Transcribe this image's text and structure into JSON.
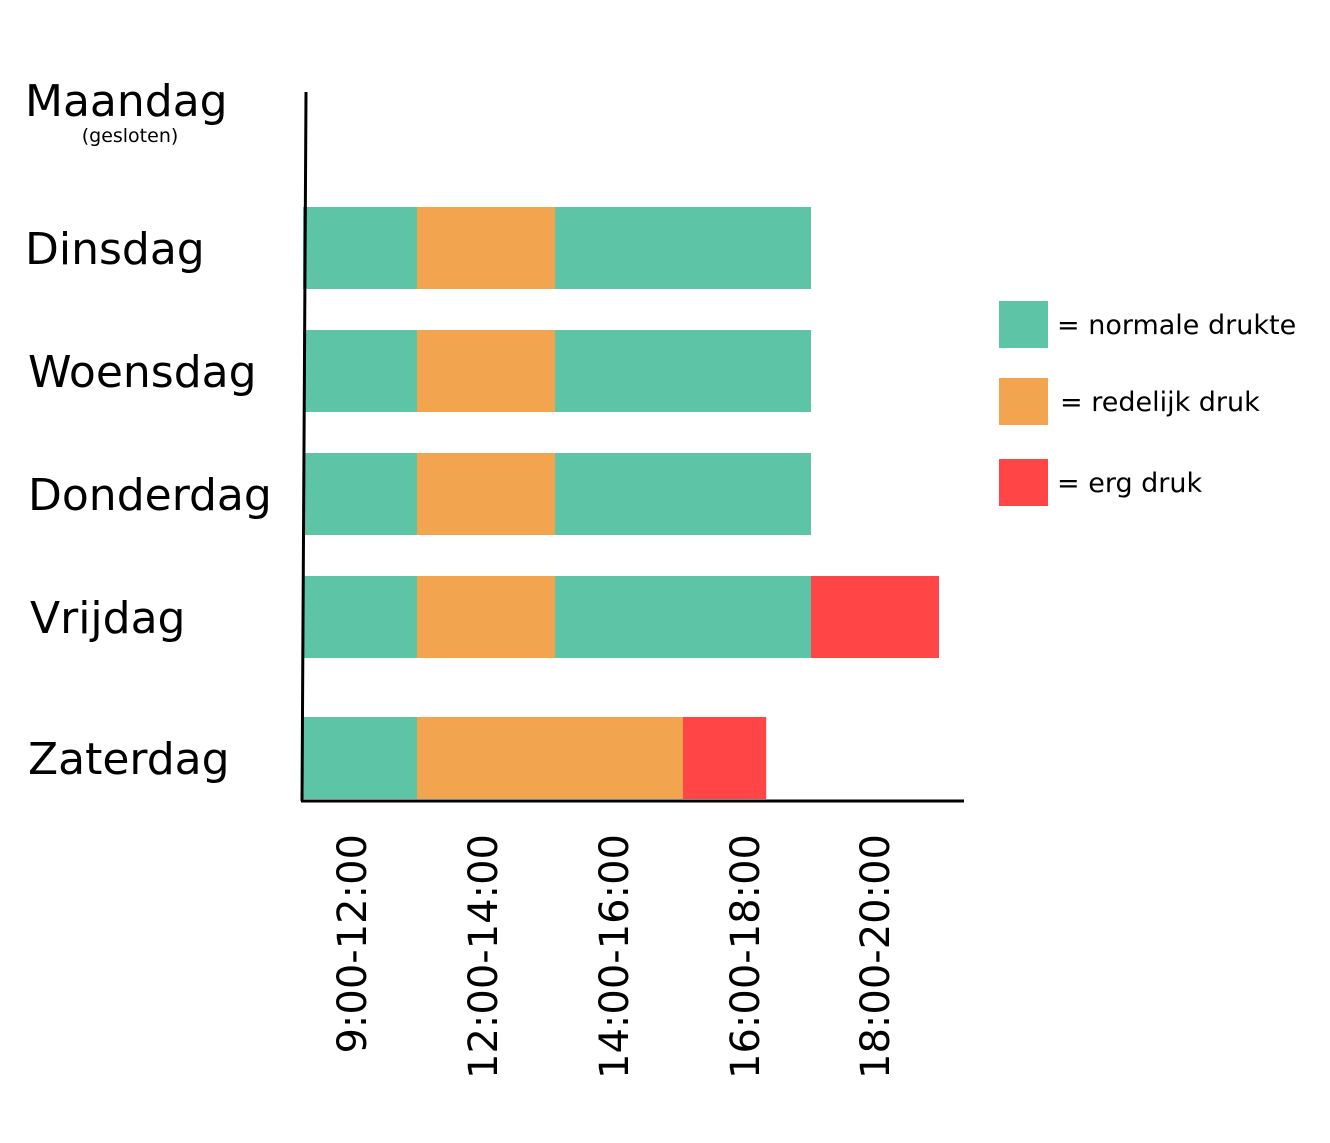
{
  "chart_data": {
    "type": "bar",
    "orientation": "horizontal-stacked",
    "categories": [
      "Maandag",
      "Dinsdag",
      "Woensdag",
      "Donderdag",
      "Vrijdag",
      "Zaterdag"
    ],
    "category_notes": {
      "Maandag": "(gesloten)"
    },
    "time_slots": [
      "9:00-12:00",
      "12:00-14:00",
      "14:00-16:00",
      "16:00-18:00",
      "18:00-20:00"
    ],
    "levels": {
      "normaal": {
        "label": "= normale drukte",
        "color": "#5EC4A6"
      },
      "redelijk": {
        "label": "= redelijk druk",
        "color": "#F3A44E"
      },
      "erg": {
        "label": "= erg druk",
        "color": "#FF4545"
      }
    },
    "legend_order": [
      "normaal",
      "redelijk",
      "erg"
    ],
    "legend_position": "right",
    "bars": [
      {
        "day": "Maandag",
        "segments": []
      },
      {
        "day": "Dinsdag",
        "segments": [
          {
            "from": 0,
            "to": 1,
            "level": "normaal"
          },
          {
            "from": 1,
            "to": 2,
            "level": "redelijk"
          },
          {
            "from": 2,
            "to": 4,
            "level": "normaal"
          }
        ]
      },
      {
        "day": "Woensdag",
        "segments": [
          {
            "from": 0,
            "to": 1,
            "level": "normaal"
          },
          {
            "from": 1,
            "to": 2,
            "level": "redelijk"
          },
          {
            "from": 2,
            "to": 4,
            "level": "normaal"
          }
        ]
      },
      {
        "day": "Donderdag",
        "segments": [
          {
            "from": 0,
            "to": 1,
            "level": "normaal"
          },
          {
            "from": 1,
            "to": 2,
            "level": "redelijk"
          },
          {
            "from": 2,
            "to": 4,
            "level": "normaal"
          }
        ]
      },
      {
        "day": "Vrijdag",
        "segments": [
          {
            "from": 0,
            "to": 1,
            "level": "normaal"
          },
          {
            "from": 1,
            "to": 2,
            "level": "redelijk"
          },
          {
            "from": 2,
            "to": 4,
            "level": "normaal"
          },
          {
            "from": 4,
            "to": 5,
            "level": "erg"
          }
        ]
      },
      {
        "day": "Zaterdag",
        "segments": [
          {
            "from": 0,
            "to": 1,
            "level": "normaal"
          },
          {
            "from": 1,
            "to": 3,
            "level": "redelijk"
          },
          {
            "from": 3,
            "to": 3.65,
            "level": "erg"
          }
        ]
      }
    ],
    "grid": false
  }
}
